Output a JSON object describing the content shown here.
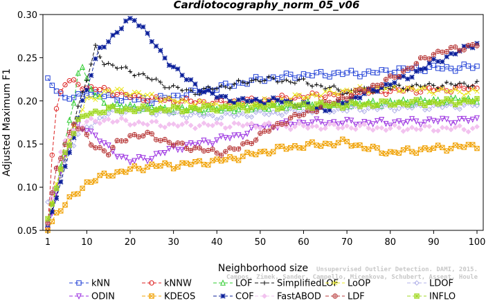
{
  "chart_data": {
    "type": "line",
    "title": "Cardiotocography_norm_05_v06",
    "xlabel": "Neighborhood size",
    "ylabel": "Adjusted Maximum F1",
    "xlim": [
      1,
      100
    ],
    "ylim": [
      0.05,
      0.3
    ],
    "xticks": [
      "1",
      "10",
      "20",
      "30",
      "40",
      "50",
      "60",
      "70",
      "80",
      "90",
      "100"
    ],
    "yticks": [
      "0.05",
      "0.10",
      "0.15",
      "0.20",
      "0.25",
      "0.30"
    ],
    "grid": false,
    "legend_position": "bottom",
    "series": [
      {
        "name": "kNN",
        "color": "#1f3fd6",
        "marker": "square",
        "dash": "5,3",
        "anchors": [
          [
            1,
            0.223
          ],
          [
            3,
            0.215
          ],
          [
            5,
            0.202
          ],
          [
            8,
            0.205
          ],
          [
            10,
            0.21
          ],
          [
            15,
            0.205
          ],
          [
            20,
            0.202
          ],
          [
            25,
            0.201
          ],
          [
            30,
            0.205
          ],
          [
            35,
            0.21
          ],
          [
            40,
            0.215
          ],
          [
            45,
            0.22
          ],
          [
            50,
            0.225
          ],
          [
            55,
            0.228
          ],
          [
            60,
            0.23
          ],
          [
            65,
            0.231
          ],
          [
            70,
            0.232
          ],
          [
            75,
            0.232
          ],
          [
            80,
            0.235
          ],
          [
            85,
            0.237
          ],
          [
            90,
            0.238
          ],
          [
            95,
            0.238
          ],
          [
            100,
            0.24
          ]
        ]
      },
      {
        "name": "kNNW",
        "color": "#dd2222",
        "marker": "circle",
        "dash": "5,3",
        "anchors": [
          [
            1,
            0.055
          ],
          [
            2,
            0.14
          ],
          [
            3,
            0.19
          ],
          [
            4,
            0.21
          ],
          [
            5,
            0.22
          ],
          [
            6,
            0.222
          ],
          [
            8,
            0.22
          ],
          [
            10,
            0.215
          ],
          [
            15,
            0.212
          ],
          [
            20,
            0.205
          ],
          [
            30,
            0.2
          ],
          [
            40,
            0.198
          ],
          [
            50,
            0.2
          ],
          [
            60,
            0.205
          ],
          [
            70,
            0.208
          ],
          [
            80,
            0.212
          ],
          [
            90,
            0.213
          ],
          [
            100,
            0.215
          ]
        ]
      },
      {
        "name": "LOF",
        "color": "#2dcc2d",
        "marker": "triangle",
        "dash": "5,3",
        "anchors": [
          [
            1,
            0.06
          ],
          [
            3,
            0.1
          ],
          [
            5,
            0.15
          ],
          [
            7,
            0.2
          ],
          [
            8,
            0.235
          ],
          [
            9,
            0.238
          ],
          [
            10,
            0.225
          ],
          [
            12,
            0.205
          ],
          [
            15,
            0.195
          ],
          [
            20,
            0.193
          ],
          [
            30,
            0.19
          ],
          [
            40,
            0.19
          ],
          [
            50,
            0.192
          ],
          [
            60,
            0.195
          ],
          [
            70,
            0.196
          ],
          [
            80,
            0.198
          ],
          [
            90,
            0.2
          ],
          [
            100,
            0.202
          ]
        ]
      },
      {
        "name": "SimplifiedLOF",
        "color": "#111111",
        "marker": "plus",
        "dash": "5,3",
        "anchors": [
          [
            1,
            0.06
          ],
          [
            3,
            0.09
          ],
          [
            5,
            0.13
          ],
          [
            7,
            0.175
          ],
          [
            9,
            0.21
          ],
          [
            11,
            0.24
          ],
          [
            12,
            0.262
          ],
          [
            14,
            0.245
          ],
          [
            16,
            0.24
          ],
          [
            20,
            0.235
          ],
          [
            25,
            0.225
          ],
          [
            30,
            0.215
          ],
          [
            35,
            0.21
          ],
          [
            40,
            0.215
          ],
          [
            50,
            0.225
          ],
          [
            60,
            0.222
          ],
          [
            70,
            0.21
          ],
          [
            80,
            0.215
          ],
          [
            90,
            0.218
          ],
          [
            100,
            0.22
          ]
        ]
      },
      {
        "name": "LoOP",
        "color": "#e8e81a",
        "marker": "x",
        "dash": "5,3",
        "anchors": [
          [
            1,
            0.06
          ],
          [
            3,
            0.1
          ],
          [
            5,
            0.14
          ],
          [
            7,
            0.17
          ],
          [
            10,
            0.2
          ],
          [
            15,
            0.212
          ],
          [
            20,
            0.21
          ],
          [
            30,
            0.2
          ],
          [
            40,
            0.195
          ],
          [
            50,
            0.198
          ],
          [
            60,
            0.205
          ],
          [
            70,
            0.212
          ],
          [
            80,
            0.215
          ],
          [
            90,
            0.212
          ],
          [
            100,
            0.21
          ]
        ]
      },
      {
        "name": "LDOF",
        "color": "#b0b0e8",
        "marker": "diamond",
        "dash": "5,3",
        "anchors": [
          [
            1,
            0.08
          ],
          [
            3,
            0.1
          ],
          [
            5,
            0.13
          ],
          [
            8,
            0.16
          ],
          [
            10,
            0.17
          ],
          [
            15,
            0.185
          ],
          [
            20,
            0.19
          ],
          [
            30,
            0.185
          ],
          [
            40,
            0.182
          ],
          [
            50,
            0.185
          ],
          [
            60,
            0.188
          ],
          [
            70,
            0.19
          ],
          [
            80,
            0.192
          ],
          [
            90,
            0.193
          ],
          [
            100,
            0.195
          ]
        ]
      },
      {
        "name": "ODIN",
        "color": "#9a2ee0",
        "marker": "trianglein",
        "dash": "5,3",
        "anchors": [
          [
            1,
            0.05
          ],
          [
            5,
            0.14
          ],
          [
            8,
            0.17
          ],
          [
            10,
            0.168
          ],
          [
            12,
            0.16
          ],
          [
            15,
            0.145
          ],
          [
            20,
            0.13
          ],
          [
            25,
            0.135
          ],
          [
            30,
            0.145
          ],
          [
            35,
            0.15
          ],
          [
            40,
            0.155
          ],
          [
            45,
            0.16
          ],
          [
            50,
            0.17
          ],
          [
            60,
            0.175
          ],
          [
            70,
            0.175
          ],
          [
            80,
            0.175
          ],
          [
            90,
            0.177
          ],
          [
            100,
            0.178
          ]
        ]
      },
      {
        "name": "KDEOS",
        "color": "#f0a000",
        "marker": "squarex",
        "dash": "5,3",
        "anchors": [
          [
            1,
            0.05
          ],
          [
            3,
            0.07
          ],
          [
            5,
            0.08
          ],
          [
            8,
            0.095
          ],
          [
            10,
            0.105
          ],
          [
            15,
            0.115
          ],
          [
            20,
            0.12
          ],
          [
            25,
            0.125
          ],
          [
            30,
            0.125
          ],
          [
            35,
            0.128
          ],
          [
            40,
            0.13
          ],
          [
            45,
            0.135
          ],
          [
            50,
            0.14
          ],
          [
            55,
            0.145
          ],
          [
            60,
            0.148
          ],
          [
            65,
            0.15
          ],
          [
            70,
            0.152
          ],
          [
            75,
            0.145
          ],
          [
            80,
            0.14
          ],
          [
            90,
            0.145
          ],
          [
            100,
            0.148
          ]
        ]
      },
      {
        "name": "COF",
        "color": "#0b1f9a",
        "marker": "asterisk",
        "dash": "5,3",
        "anchors": [
          [
            1,
            0.055
          ],
          [
            3,
            0.09
          ],
          [
            5,
            0.12
          ],
          [
            7,
            0.16
          ],
          [
            9,
            0.2
          ],
          [
            11,
            0.23
          ],
          [
            13,
            0.26
          ],
          [
            15,
            0.27
          ],
          [
            17,
            0.28
          ],
          [
            19,
            0.29
          ],
          [
            21,
            0.295
          ],
          [
            23,
            0.285
          ],
          [
            25,
            0.27
          ],
          [
            27,
            0.255
          ],
          [
            30,
            0.24
          ],
          [
            33,
            0.225
          ],
          [
            36,
            0.215
          ],
          [
            40,
            0.205
          ],
          [
            45,
            0.2
          ],
          [
            50,
            0.2
          ],
          [
            55,
            0.2
          ],
          [
            60,
            0.195
          ],
          [
            65,
            0.19
          ],
          [
            70,
            0.2
          ],
          [
            75,
            0.21
          ],
          [
            80,
            0.22
          ],
          [
            85,
            0.23
          ],
          [
            90,
            0.245
          ],
          [
            95,
            0.255
          ],
          [
            100,
            0.268
          ]
        ]
      },
      {
        "name": "FastABOD",
        "color": "#f2c2ef",
        "marker": "diamondfill",
        "dash": "5,3",
        "anchors": [
          [
            1,
            0.06
          ],
          [
            3,
            0.12
          ],
          [
            5,
            0.155
          ],
          [
            8,
            0.17
          ],
          [
            10,
            0.175
          ],
          [
            15,
            0.178
          ],
          [
            20,
            0.175
          ],
          [
            30,
            0.172
          ],
          [
            40,
            0.172
          ],
          [
            50,
            0.172
          ],
          [
            60,
            0.17
          ],
          [
            70,
            0.17
          ],
          [
            80,
            0.168
          ],
          [
            90,
            0.168
          ],
          [
            100,
            0.168
          ]
        ]
      },
      {
        "name": "LDF",
        "color": "#b83a3a",
        "marker": "circleplus",
        "dash": "5,3",
        "anchors": [
          [
            1,
            0.06
          ],
          [
            3,
            0.12
          ],
          [
            5,
            0.15
          ],
          [
            7,
            0.175
          ],
          [
            9,
            0.165
          ],
          [
            11,
            0.15
          ],
          [
            13,
            0.145
          ],
          [
            15,
            0.14
          ],
          [
            17,
            0.15
          ],
          [
            20,
            0.16
          ],
          [
            25,
            0.16
          ],
          [
            30,
            0.15
          ],
          [
            35,
            0.145
          ],
          [
            40,
            0.14
          ],
          [
            45,
            0.145
          ],
          [
            50,
            0.16
          ],
          [
            55,
            0.175
          ],
          [
            60,
            0.185
          ],
          [
            65,
            0.195
          ],
          [
            70,
            0.205
          ],
          [
            75,
            0.215
          ],
          [
            80,
            0.225
          ],
          [
            85,
            0.24
          ],
          [
            90,
            0.255
          ],
          [
            95,
            0.26
          ],
          [
            100,
            0.265
          ]
        ]
      },
      {
        "name": "INFLO",
        "color": "#a0d820",
        "marker": "squarestar",
        "dash": "5,3",
        "anchors": [
          [
            1,
            0.06
          ],
          [
            3,
            0.1
          ],
          [
            5,
            0.14
          ],
          [
            8,
            0.175
          ],
          [
            10,
            0.185
          ],
          [
            15,
            0.19
          ],
          [
            20,
            0.19
          ],
          [
            30,
            0.19
          ],
          [
            40,
            0.192
          ],
          [
            50,
            0.193
          ],
          [
            60,
            0.195
          ],
          [
            70,
            0.195
          ],
          [
            80,
            0.197
          ],
          [
            90,
            0.198
          ],
          [
            100,
            0.2
          ]
        ]
      }
    ]
  },
  "legend": {
    "columns": [
      [
        "kNN",
        "ODIN"
      ],
      [
        "kNNW",
        "KDEOS"
      ],
      [
        "LOF",
        "COF"
      ],
      [
        "SimplifiedLOF",
        "FastABOD"
      ],
      [
        "LoOP",
        "LDF"
      ],
      [
        "LDOF",
        "INFLO"
      ]
    ]
  },
  "watermark": {
    "line1": "Unsupervised Outlier Detection. DAMI, 2015.",
    "line2": "Campos, Zimek, Sander, Campello, Micenkova, Schubert, Assent, Houle"
  }
}
